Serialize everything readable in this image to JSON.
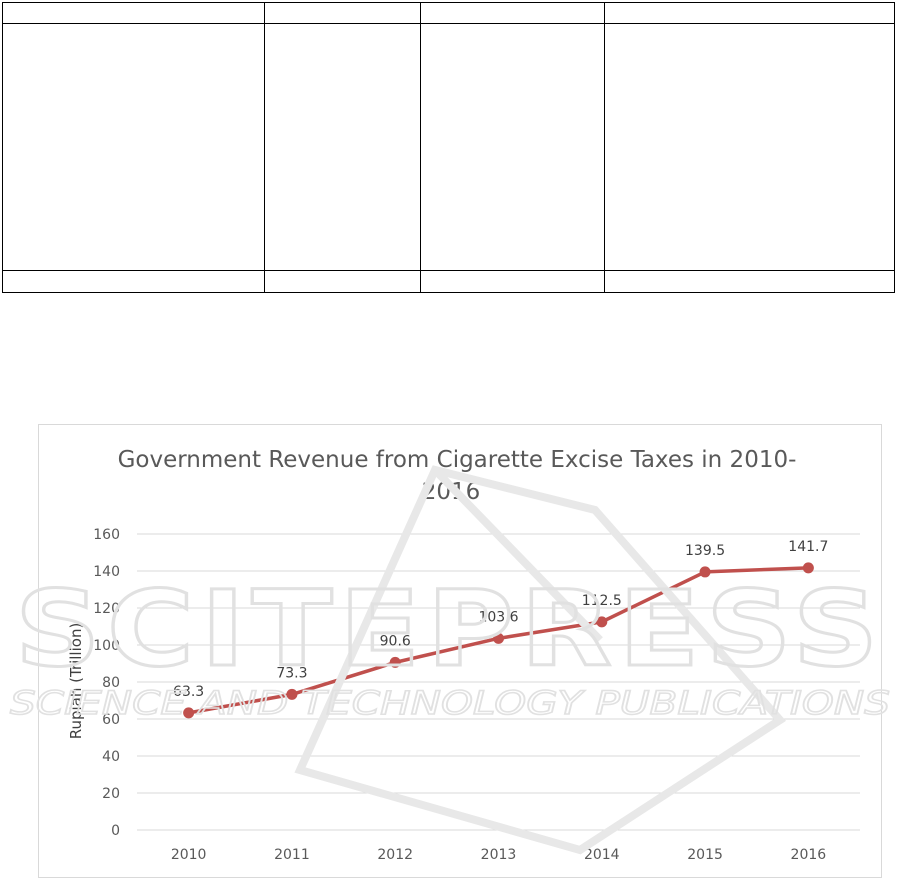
{
  "chart_data": {
    "type": "line",
    "title_line1": "Government Revenue from Cigarette Excise Taxes in 2010-",
    "title_line2": "2016",
    "xlabel": "",
    "ylabel": "Rupiah (Trillion)",
    "ylim": [
      0,
      160
    ],
    "yticks": [
      0,
      20,
      40,
      60,
      80,
      100,
      120,
      140,
      160
    ],
    "grid": "horizontal",
    "legend": "none",
    "categories": [
      "2010",
      "2011",
      "2012",
      "2013",
      "2014",
      "2015",
      "2016"
    ],
    "series": [
      {
        "values": [
          63.3,
          73.3,
          90.6,
          103.6,
          112.5,
          139.5,
          141.7
        ]
      }
    ],
    "line_color": "#c0504d",
    "data_labels": [
      "63.3",
      "73.3",
      "90.6",
      "103.6",
      "112.5",
      "139.5",
      "141.7"
    ]
  },
  "watermark": {
    "word": "SCITEPRESS",
    "tagline": "SCIENCE AND TECHNOLOGY PUBLICATIONS",
    "color": "#e3e3e3"
  }
}
